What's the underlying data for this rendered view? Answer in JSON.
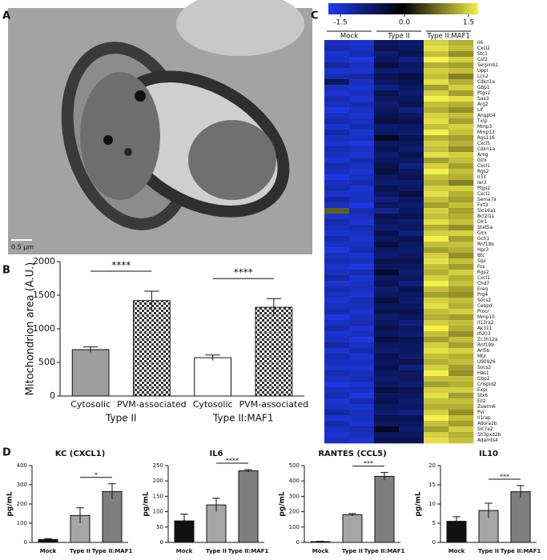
{
  "panel_labels": [
    "A",
    "B",
    "C",
    "D"
  ],
  "micrograph": {
    "scale_bar": "0.5 µm"
  },
  "chart_data": [
    {
      "type": "bar",
      "ylabel": "Mitochondrion area (A.U.)",
      "categories": [
        "Cytosolic",
        "PVM-associated",
        "Cytosolic",
        "PVM-associated"
      ],
      "groups": [
        "Type II",
        "Type II:MAF1"
      ],
      "values": [
        690,
        1420,
        570,
        1320
      ],
      "errors": [
        40,
        140,
        40,
        130
      ],
      "colors": [
        "#9e9e9e",
        "checker",
        "#ffffff",
        "checker"
      ],
      "significance": [
        "****",
        "****"
      ],
      "ylim": [
        0,
        2000
      ],
      "yticks": [
        0,
        500,
        1000,
        1500,
        2000
      ]
    },
    {
      "type": "heatmap",
      "colorbar": {
        "lim": [
          -1.5,
          1.5
        ],
        "ticks": [
          -1.5,
          {
            "value": 0,
            "label": "0.0"
          },
          1.5
        ],
        "colors": [
          "#1f3cf0",
          "#000000",
          "#f5f04a"
        ]
      },
      "column_groups": [
        "Mock",
        "Type II",
        "Type II:MAF1"
      ],
      "rows": [
        "Il6",
        "Cxcl2",
        "Stc1",
        "Csf2",
        "Serpinb2",
        "Uppl",
        "Lcn2",
        "Cdkn1a",
        "Gbp1",
        "Ptgs2",
        "Saa3",
        "Arg2",
        "Lif",
        "Angptl4",
        "Txlp",
        "Mmp3",
        "Mmp13",
        "Rgs116",
        "Cxcl5",
        "Cdkn1a",
        "Areg",
        "Glrx",
        "Cxcl1",
        "Rgs2",
        "Il33",
        "Ier3",
        "Ptgs2",
        "Cxcl1",
        "Sema7a",
        "Flrt3",
        "Slc16a1",
        "Bcl2l11",
        "Olr1",
        "Stat5a",
        "Glrx",
        "Gch1",
        "Rnf19b",
        "Hpr3",
        "Btc",
        "Slpi",
        "Fos",
        "Rgs2",
        "Cxcl1",
        "Chd7",
        "Ereg",
        "Prg4",
        "Socs2",
        "Cebpd",
        "Procr",
        "Mmp10",
        "Il13ra2",
        "Ak311",
        "Ifi203",
        "Zc3h12a",
        "Rnf19b",
        "Arl5b",
        "Mt2",
        "U90926",
        "Socs2",
        "Has1",
        "Gbp2",
        "Crispld2",
        "Expi",
        "Stx6",
        "Ell2",
        "Zswim6",
        "Pvr",
        "Il1rap",
        "Adora2b",
        "Slc7a2",
        "Sh3pxd2b",
        "Adamts4"
      ],
      "values": [
        [
          -1.2,
          -1.3,
          -0.6,
          -0.7,
          1.3,
          1.1
        ],
        [
          -1.1,
          -1.2,
          -0.5,
          -0.6,
          1.4,
          1.2
        ],
        [
          -1.3,
          -1.1,
          -0.7,
          -0.5,
          1.2,
          0.9
        ],
        [
          -1.2,
          -1.4,
          -0.6,
          -0.8,
          1.5,
          1.3
        ],
        [
          -1.0,
          -1.2,
          -0.4,
          -0.6,
          1.1,
          1.0
        ],
        [
          -1.3,
          -1.3,
          -0.7,
          -0.7,
          1.3,
          1.2
        ],
        [
          -1.1,
          -1.0,
          -0.5,
          -0.4,
          1.2,
          0.8
        ],
        [
          -0.6,
          -1.2,
          -0.6,
          -0.5,
          1.4,
          1.1
        ],
        [
          -1.2,
          -1.3,
          -0.8,
          -0.6,
          1.0,
          1.3
        ],
        [
          -1.3,
          -1.2,
          -0.5,
          -0.7,
          1.3,
          1.0
        ],
        [
          -1.1,
          -1.3,
          -0.6,
          -0.6,
          1.5,
          1.4
        ],
        [
          -1.2,
          -1.1,
          -0.7,
          -0.5,
          1.2,
          1.1
        ],
        [
          -1.4,
          -1.2,
          -0.6,
          -0.8,
          1.1,
          0.9
        ],
        [
          -1.2,
          -1.3,
          -0.5,
          -0.6,
          1.3,
          1.2
        ],
        [
          -1.1,
          -1.2,
          -0.4,
          -0.5,
          1.4,
          1.0
        ],
        [
          -1.3,
          -1.1,
          -0.7,
          -0.6,
          1.2,
          1.3
        ],
        [
          -1.0,
          -1.3,
          -0.6,
          -0.7,
          1.5,
          1.2
        ],
        [
          -1.2,
          -1.2,
          -0.2,
          -0.5,
          1.1,
          1.0
        ],
        [
          -1.3,
          -1.4,
          -0.6,
          -0.6,
          1.3,
          1.1
        ],
        [
          -1.1,
          -1.2,
          -0.5,
          -0.7,
          1.2,
          0.9
        ],
        [
          -1.2,
          -1.3,
          -0.7,
          -0.5,
          1.4,
          1.3
        ],
        [
          -1.3,
          -1.1,
          -0.6,
          -0.6,
          1.0,
          1.2
        ],
        [
          -1.1,
          -1.2,
          -0.5,
          -0.8,
          1.3,
          1.0
        ],
        [
          -1.2,
          -1.3,
          -0.4,
          -0.6,
          1.5,
          1.2
        ],
        [
          -1.4,
          -1.2,
          -0.6,
          -0.5,
          1.2,
          1.1
        ],
        [
          -1.2,
          -1.1,
          -0.7,
          -0.7,
          1.1,
          0.8
        ],
        [
          -1.1,
          -1.3,
          -0.5,
          -0.6,
          1.3,
          1.3
        ],
        [
          -1.3,
          -1.2,
          -0.6,
          -0.4,
          1.4,
          1.1
        ],
        [
          -1.0,
          -1.2,
          -0.8,
          -0.6,
          1.2,
          1.0
        ],
        [
          -1.2,
          -1.4,
          -0.6,
          -0.7,
          1.0,
          1.2
        ],
        [
          0.6,
          -1.1,
          -0.9,
          -0.6,
          1.3,
          1.0
        ],
        [
          -1.3,
          -1.2,
          -0.5,
          -0.5,
          1.2,
          1.1
        ],
        [
          -1.1,
          -1.3,
          -0.6,
          -0.7,
          1.4,
          1.2
        ],
        [
          -1.2,
          -1.1,
          -0.7,
          -0.6,
          1.1,
          0.9
        ],
        [
          -1.3,
          -1.2,
          -0.5,
          -0.8,
          1.3,
          1.3
        ],
        [
          -1.1,
          -1.3,
          -0.6,
          -0.5,
          1.5,
          1.0
        ],
        [
          -1.2,
          -1.2,
          -0.4,
          -0.6,
          1.2,
          1.2
        ],
        [
          -1.4,
          -1.1,
          -0.6,
          -0.7,
          1.0,
          1.1
        ],
        [
          -1.2,
          -1.3,
          -0.7,
          -0.6,
          1.3,
          0.9
        ],
        [
          -1.1,
          -1.2,
          -0.5,
          -0.5,
          1.4,
          1.2
        ],
        [
          -1.3,
          -1.4,
          -0.6,
          -0.6,
          1.2,
          1.0
        ],
        [
          -1.2,
          -1.1,
          -0.3,
          -0.7,
          1.1,
          1.3
        ],
        [
          -1.0,
          -1.3,
          -0.6,
          -0.6,
          1.3,
          1.1
        ],
        [
          -1.3,
          -1.2,
          -0.5,
          -0.8,
          1.5,
          1.2
        ],
        [
          -1.1,
          -1.2,
          -0.7,
          -0.5,
          1.2,
          1.0
        ],
        [
          -1.2,
          -1.3,
          -0.6,
          -0.6,
          1.0,
          0.9
        ],
        [
          -1.3,
          -1.1,
          -0.4,
          -0.7,
          1.3,
          1.2
        ],
        [
          -1.2,
          -1.2,
          -0.6,
          -0.6,
          1.4,
          1.1
        ],
        [
          -1.1,
          -1.3,
          -0.5,
          -0.5,
          1.2,
          1.3
        ],
        [
          -1.4,
          -1.2,
          -0.7,
          -0.6,
          1.1,
          1.0
        ],
        [
          -1.2,
          -1.1,
          -0.6,
          -0.8,
          1.3,
          1.2
        ],
        [
          -1.1,
          -1.3,
          -0.5,
          -0.6,
          1.5,
          1.1
        ],
        [
          -1.3,
          -1.2,
          -0.6,
          -0.7,
          1.2,
          0.9
        ],
        [
          -1.2,
          -1.4,
          -0.4,
          -0.5,
          1.0,
          1.2
        ],
        [
          -1.0,
          -1.2,
          -0.6,
          -0.6,
          1.3,
          1.0
        ],
        [
          -1.3,
          -1.1,
          -0.7,
          -0.6,
          1.4,
          1.3
        ],
        [
          -1.1,
          -1.3,
          -0.5,
          -0.7,
          1.2,
          1.1
        ],
        [
          -1.2,
          -1.2,
          -0.6,
          -0.5,
          1.1,
          1.2
        ],
        [
          -1.3,
          -1.3,
          -0.5,
          -0.8,
          1.3,
          1.0
        ],
        [
          -1.1,
          -1.2,
          -0.6,
          -0.6,
          1.5,
          0.9
        ],
        [
          -1.2,
          -1.1,
          -0.7,
          -0.6,
          1.2,
          1.2
        ],
        [
          -1.4,
          -1.3,
          -0.6,
          -0.7,
          1.0,
          1.1
        ],
        [
          -1.2,
          -1.2,
          -0.4,
          -0.5,
          1.3,
          1.3
        ],
        [
          -1.1,
          -1.4,
          -0.6,
          -0.6,
          1.4,
          1.0
        ],
        [
          -1.3,
          -1.1,
          -0.5,
          -0.7,
          1.2,
          1.2
        ],
        [
          -1.2,
          -1.3,
          -0.6,
          -0.6,
          1.1,
          1.1
        ],
        [
          -1.0,
          -1.2,
          -0.7,
          -0.8,
          1.3,
          0.9
        ],
        [
          -1.3,
          -1.2,
          -0.5,
          -0.5,
          1.5,
          1.2
        ],
        [
          -1.1,
          -1.3,
          -0.6,
          -0.6,
          1.2,
          1.0
        ],
        [
          -1.2,
          -1.1,
          -0.2,
          -0.7,
          1.0,
          1.3
        ],
        [
          -1.3,
          -1.2,
          -0.6,
          -0.6,
          1.3,
          1.1
        ],
        [
          -1.2,
          -1.3,
          -0.5,
          -0.5,
          1.4,
          1.2
        ]
      ]
    },
    {
      "type": "bar",
      "title": "KC (CXCL1)",
      "ylabel": "pg/mL",
      "categories": [
        "Mock",
        "Type II",
        "Type II:MAF1"
      ],
      "values": [
        15,
        140,
        265
      ],
      "errors": [
        5,
        40,
        40
      ],
      "colors": [
        "#111111",
        "#a6a6a6",
        "#7f7f7f"
      ],
      "significance": "*",
      "ylim": [
        0,
        400
      ],
      "yticks": [
        0,
        100,
        200,
        300,
        400
      ]
    },
    {
      "type": "bar",
      "title": "IL6",
      "ylabel": "pg/mL",
      "categories": [
        "Mock",
        "Type II",
        "Type II:MAF1"
      ],
      "values": [
        70,
        122,
        233
      ],
      "errors": [
        22,
        22,
        4
      ],
      "colors": [
        "#111111",
        "#a6a6a6",
        "#7f7f7f"
      ],
      "significance": "****",
      "ylim": [
        0,
        250
      ],
      "yticks": [
        0,
        50,
        100,
        150,
        200,
        250
      ]
    },
    {
      "type": "bar",
      "title": "RANTES (CCL5)",
      "ylabel": "pg/mL",
      "categories": [
        "Mock",
        "Type II",
        "Type II:MAF1"
      ],
      "values": [
        5,
        180,
        430
      ],
      "errors": [
        2,
        8,
        25
      ],
      "colors": [
        "#111111",
        "#a6a6a6",
        "#7f7f7f"
      ],
      "significance": "***",
      "ylim": [
        0,
        500
      ],
      "yticks": [
        0,
        100,
        200,
        300,
        400,
        500
      ]
    },
    {
      "type": "bar",
      "title": "IL10",
      "ylabel": "pg/mL",
      "categories": [
        "Mock",
        "Type II",
        "Type II:MAF1"
      ],
      "values": [
        5.5,
        8.3,
        13.2
      ],
      "errors": [
        1.2,
        1.9,
        1.6
      ],
      "colors": [
        "#111111",
        "#a6a6a6",
        "#7f7f7f"
      ],
      "significance": "***",
      "ylim": [
        0,
        20
      ],
      "yticks": [
        0,
        5,
        10,
        15,
        20
      ]
    }
  ]
}
